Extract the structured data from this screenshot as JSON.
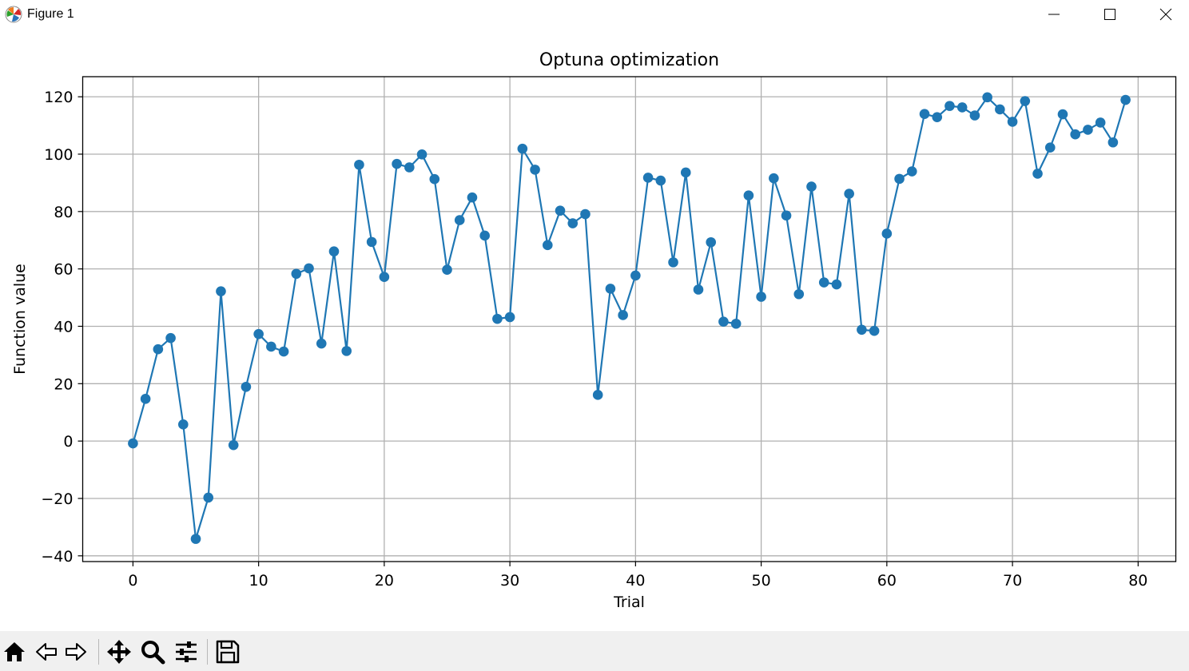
{
  "window": {
    "title": "Figure 1",
    "buttons": [
      "minimize-icon",
      "maximize-icon",
      "close-icon"
    ]
  },
  "toolbar": {
    "items": [
      "home-icon",
      "back-arrow-icon",
      "forward-arrow-icon",
      "pan-move-icon",
      "zoom-magnifier-icon",
      "configure-subplots-icon",
      "save-disk-icon"
    ]
  },
  "colors": {
    "series": "#1f77b4",
    "grid": "#b0b0b0",
    "axes": "#000000",
    "toolbar_bg": "#f0f0f0"
  },
  "chart_data": {
    "type": "line",
    "title": "Optuna optimization",
    "xlabel": "Trial",
    "ylabel": "Function value",
    "xlim": [
      -4,
      83
    ],
    "ylim": [
      -42,
      127
    ],
    "xticks": [
      0,
      10,
      20,
      30,
      40,
      50,
      60,
      70,
      80
    ],
    "yticks": [
      -40,
      -20,
      0,
      20,
      40,
      60,
      80,
      100,
      120
    ],
    "grid": true,
    "marker": "circle",
    "series": [
      {
        "x": [
          0,
          1,
          2,
          3,
          4,
          5,
          6,
          7,
          8,
          9,
          10,
          11,
          12,
          13,
          14,
          15,
          16,
          17,
          18,
          19,
          20,
          21,
          22,
          23,
          24,
          25,
          26,
          27,
          28,
          29,
          30,
          31,
          32,
          33,
          34,
          35,
          36,
          37,
          38,
          39,
          40,
          41,
          42,
          43,
          44,
          45,
          46,
          47,
          48,
          49,
          50,
          51,
          52,
          53,
          54,
          55,
          56,
          57,
          58,
          59,
          60,
          61,
          62,
          63,
          64,
          65,
          66,
          67,
          68,
          69,
          70,
          71,
          72,
          73,
          74,
          75,
          76,
          77,
          78,
          79
        ],
        "values": [
          -0.8,
          14.7,
          32.0,
          35.9,
          5.8,
          -34.1,
          -19.7,
          52.2,
          -1.4,
          18.9,
          37.3,
          32.9,
          31.2,
          58.3,
          60.2,
          34.0,
          66.1,
          31.4,
          96.3,
          69.4,
          57.2,
          96.6,
          95.4,
          99.9,
          91.3,
          59.7,
          77.0,
          84.9,
          71.6,
          42.6,
          43.2,
          101.9,
          94.6,
          68.3,
          80.3,
          75.9,
          79.1,
          16.1,
          53.1,
          43.9,
          57.7,
          91.8,
          90.8,
          62.3,
          93.6,
          52.8,
          69.3,
          41.6,
          40.9,
          85.6,
          50.3,
          91.6,
          78.6,
          51.2,
          88.7,
          55.3,
          54.6,
          86.2,
          38.8,
          38.4,
          72.3,
          91.4,
          94.0,
          114.0,
          112.9,
          116.8,
          116.3,
          113.5,
          119.8,
          115.6,
          111.3,
          118.5,
          93.2,
          102.3,
          113.9,
          106.9,
          108.5,
          111.0,
          104.1,
          118.9
        ]
      }
    ]
  }
}
